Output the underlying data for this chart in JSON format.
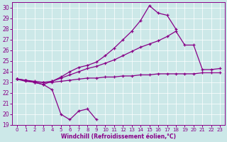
{
  "x": [
    0,
    1,
    2,
    3,
    4,
    5,
    6,
    7,
    8,
    9,
    10,
    11,
    12,
    13,
    14,
    15,
    16,
    17,
    18,
    19,
    20,
    21,
    22,
    23
  ],
  "line1_y": [
    23.3,
    23.2,
    23.0,
    22.8,
    22.3,
    20.0,
    19.5,
    20.3,
    20.5,
    19.5,
    null,
    null,
    null,
    null,
    null,
    null,
    null,
    null,
    null,
    null,
    null,
    null,
    null,
    null
  ],
  "line2_y": [
    23.3,
    23.1,
    23.0,
    23.0,
    23.0,
    23.1,
    23.2,
    23.3,
    23.4,
    23.4,
    23.5,
    23.5,
    23.6,
    23.6,
    23.7,
    23.7,
    23.8,
    23.8,
    23.8,
    23.8,
    23.8,
    23.9,
    23.9,
    23.9
  ],
  "line3_y": [
    23.3,
    23.2,
    23.1,
    23.0,
    23.1,
    23.4,
    23.7,
    24.0,
    24.3,
    24.5,
    24.8,
    25.1,
    25.5,
    25.9,
    26.3,
    26.6,
    26.9,
    27.3,
    27.8,
    26.5,
    26.5,
    24.2,
    24.2,
    24.3
  ],
  "line4_y": [
    23.3,
    23.2,
    23.0,
    22.8,
    23.1,
    23.5,
    24.0,
    24.4,
    24.6,
    24.9,
    25.5,
    26.2,
    27.0,
    27.8,
    28.8,
    30.2,
    29.5,
    29.3,
    28.0,
    null,
    null,
    null,
    null,
    null
  ],
  "color": "#880088",
  "bg_color": "#cce8e8",
  "xlabel": "Windchill (Refroidissement éolien,°C)",
  "ylim": [
    19,
    30.5
  ],
  "xlim": [
    -0.5,
    23.5
  ],
  "yticks": [
    19,
    20,
    21,
    22,
    23,
    24,
    25,
    26,
    27,
    28,
    29,
    30
  ],
  "xticks": [
    0,
    1,
    2,
    3,
    4,
    5,
    6,
    7,
    8,
    9,
    10,
    11,
    12,
    13,
    14,
    15,
    16,
    17,
    18,
    19,
    20,
    21,
    22,
    23
  ],
  "ytick_fontsize": 5.5,
  "xtick_fontsize": 5.0,
  "xlabel_fontsize": 5.5,
  "linewidth": 0.9,
  "markersize": 3.5
}
